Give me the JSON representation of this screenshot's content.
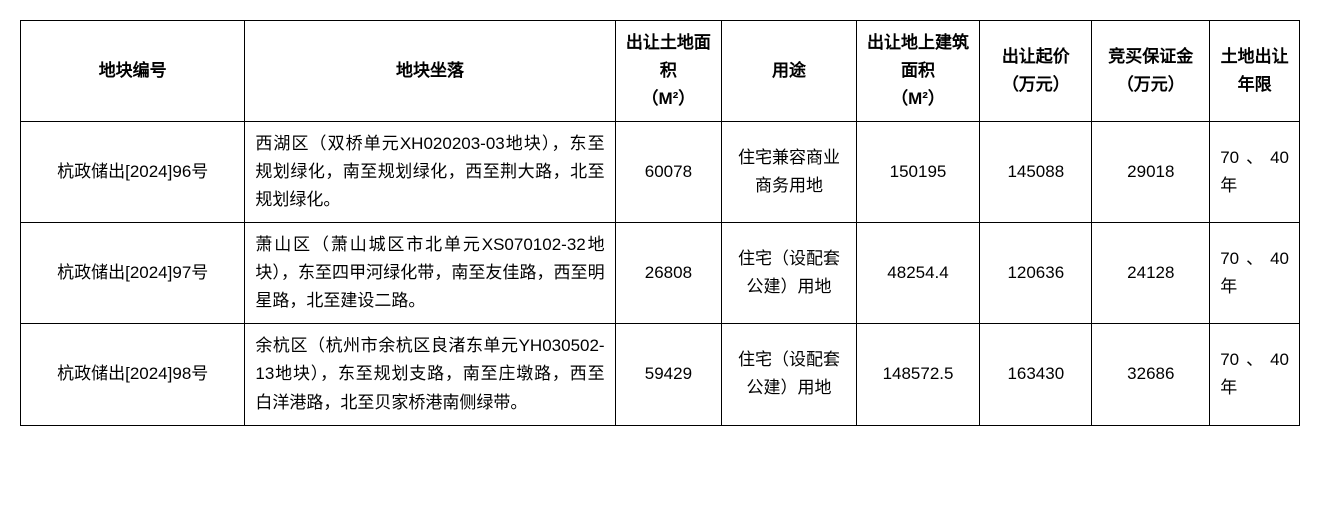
{
  "columns": {
    "id": "地块编号",
    "location": "地块坐落",
    "land_area_l1": "出让土地面积",
    "land_area_unit": "（M²）",
    "usage": "用途",
    "building_area_l1": "出让地上建筑面积",
    "building_area_unit": "（M²）",
    "start_price": "出让起价（万元）",
    "deposit": "竞买保证金（万元）",
    "term": "土地出让年限"
  },
  "rows": [
    {
      "id": "杭政储出[2024]96号",
      "location": "西湖区（双桥单元XH020203-03地块），东至规划绿化，南至规划绿化，西至荆大路，北至规划绿化。",
      "land_area": "60078",
      "usage": "住宅兼容商业商务用地",
      "building_area": "150195",
      "start_price": "145088",
      "deposit": "29018",
      "term": "70、40年"
    },
    {
      "id": "杭政储出[2024]97号",
      "location": "萧山区（萧山城区市北单元XS070102-32地块），东至四甲河绿化带，南至友佳路，西至明星路，北至建设二路。",
      "land_area": "26808",
      "usage": "住宅（设配套公建）用地",
      "building_area": "48254.4",
      "start_price": "120636",
      "deposit": "24128",
      "term": "70、40年"
    },
    {
      "id": "杭政储出[2024]98号",
      "location": "余杭区（杭州市余杭区良渚东单元YH030502-13地块），东至规划支路，南至庄墩路，西至白洋港路，北至贝家桥港南侧绿带。",
      "land_area": "59429",
      "usage": "住宅（设配套公建）用地",
      "building_area": "148572.5",
      "start_price": "163430",
      "deposit": "32686",
      "term": "70、40年"
    }
  ]
}
